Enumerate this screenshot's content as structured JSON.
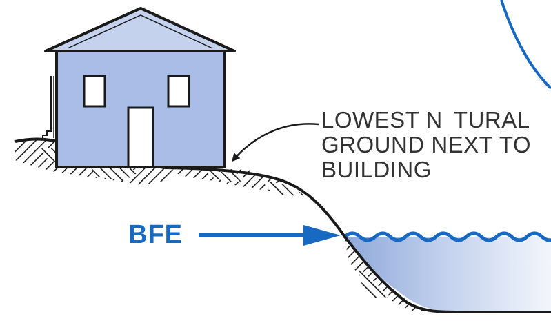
{
  "callout": {
    "line1": "LOWEST N   TURAL",
    "line2": "GROUND NEXT TO",
    "line3": "BUILDING"
  },
  "bfe": {
    "label": "BFE"
  },
  "colors": {
    "house_fill": "#a9bde6",
    "roof_fill": "#c4d2ee",
    "water_top": "#8fa9da",
    "water_bottom": "#f3f6fc",
    "accent_blue": "#1769c2",
    "outline": "#1a1a1a",
    "text": "#333333"
  },
  "icons": {
    "house": "house-icon",
    "arrow": "right-arrow-icon",
    "leader": "curved-leader-arrow-icon",
    "waves": "water-wave-icon"
  }
}
